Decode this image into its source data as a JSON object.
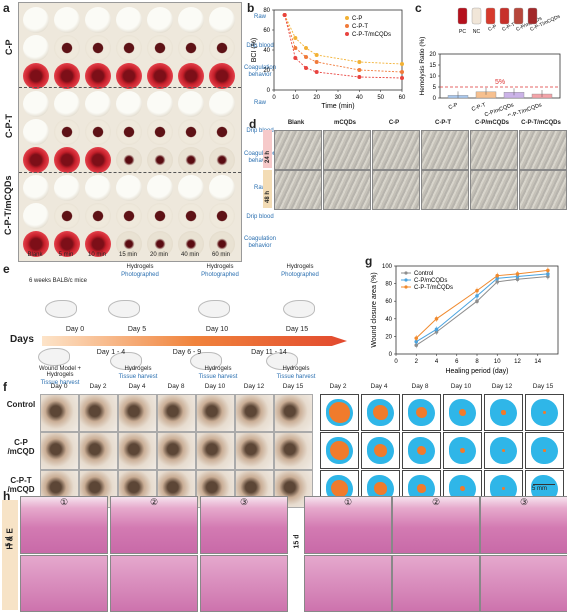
{
  "panel_a": {
    "label": "a",
    "groups": [
      "C-P",
      "C-P-T",
      "C-P-T/mCQDs"
    ],
    "row_labels": [
      "Raw",
      "Drip blood",
      "Coagulation behavior"
    ],
    "columns": [
      "Blank",
      "5 min",
      "10 min",
      "15 min",
      "20 min",
      "40 min",
      "60 min"
    ]
  },
  "panel_b": {
    "label": "b",
    "chart_data": {
      "type": "line",
      "ylabel": "BCI (%)",
      "xlabel": "Time (min)",
      "xlim": [
        0,
        60
      ],
      "ylim": [
        0,
        80
      ],
      "xticks": [
        "0",
        "10",
        "20",
        "30",
        "40",
        "50",
        "60"
      ],
      "yticks": [
        "0",
        "20",
        "40",
        "60",
        "80"
      ],
      "legend": "top-right",
      "x": [
        5,
        10,
        15,
        20,
        40,
        60
      ],
      "series": [
        {
          "name": "C-P",
          "color": "#f2b134",
          "values": [
            75,
            52,
            42,
            35,
            28,
            26
          ]
        },
        {
          "name": "C-P-T",
          "color": "#f07a3a",
          "values": [
            75,
            42,
            33,
            28,
            20,
            18
          ]
        },
        {
          "name": "C-P-T/mCQDs",
          "color": "#e8433f",
          "values": [
            75,
            32,
            22,
            18,
            13,
            12
          ]
        }
      ]
    }
  },
  "panel_c": {
    "label": "c",
    "chart_data": {
      "type": "bar",
      "ylabel": "Hemolysis Ratio (%)",
      "ylim": [
        0,
        20
      ],
      "yticks": [
        "0",
        "5",
        "10",
        "15",
        "20"
      ],
      "threshold_label": "5%",
      "categories": [
        "C-P",
        "C-P-T",
        "C-P/mCQDs",
        "C-P-T/mCQDs"
      ],
      "values": [
        1.2,
        2.8,
        2.6,
        1.8
      ],
      "colors": [
        "#a9c8ee",
        "#f6c08f",
        "#cbb3e8",
        "#f4a3a8"
      ],
      "tube_labels": [
        "PC",
        "NC",
        "C-P",
        "C-P-T",
        "C-P/mCQDs",
        "C-P-T/mCQDs"
      ]
    }
  },
  "panel_d": {
    "label": "d",
    "columns": [
      "Blank",
      "mCQDs",
      "C-P",
      "C-P-T",
      "C-P/mCQDs",
      "C-P-T/mCQDs"
    ],
    "rows": [
      "24 h",
      "48 h"
    ]
  },
  "panel_e": {
    "label": "e",
    "axis_label": "Days",
    "start_text": "6 weeks BALB/c mice",
    "days_top": [
      "Day 0",
      "Day 5",
      "Day 10",
      "Day 15"
    ],
    "days_bottom": [
      "Day 1 - 4",
      "Day 6 - 9",
      "Day 11 - 14"
    ],
    "top_events": [
      {
        "title": "Hydrogels",
        "sub": "Photographed"
      },
      {
        "title": "Hydrogels",
        "sub": "Photographed"
      },
      {
        "title": "Hydrogels",
        "sub": "Photographed"
      }
    ],
    "bottom_events": [
      {
        "title": "Wound Model + Hydrogels",
        "sub": "Tissue harvest"
      },
      {
        "title": "Hydrogels",
        "sub": "Tissue harvest"
      },
      {
        "title": "Hydrogels",
        "sub": "Tissue harvest"
      },
      {
        "title": "Hydrogels",
        "sub": "Tissue harvest"
      }
    ]
  },
  "panel_g": {
    "label": "g",
    "chart_data": {
      "type": "line",
      "ylabel": "Wound closure area (%)",
      "xlabel": "Healing period (day)",
      "xlim": [
        0,
        16
      ],
      "ylim": [
        0,
        100
      ],
      "xticks": [
        "0",
        "2",
        "4",
        "6",
        "8",
        "10",
        "12",
        "14"
      ],
      "yticks": [
        "0",
        "20",
        "40",
        "60",
        "80",
        "100"
      ],
      "legend": "top-left",
      "x": [
        2,
        4,
        8,
        10,
        12,
        15
      ],
      "series": [
        {
          "name": "Control",
          "color": "#8e8e8e",
          "values": [
            10,
            25,
            60,
            82,
            85,
            88
          ]
        },
        {
          "name": "C-P/mCQDs",
          "color": "#4aa3df",
          "values": [
            14,
            28,
            66,
            86,
            88,
            91
          ]
        },
        {
          "name": "C-P-T/mCQDs",
          "color": "#f08a2e",
          "values": [
            18,
            40,
            72,
            89,
            91,
            95
          ]
        }
      ]
    }
  },
  "panel_f": {
    "label": "f",
    "days_left": [
      "Day 0",
      "Day 2",
      "Day 4",
      "Day 8",
      "Day 10",
      "Day 12",
      "Day 15"
    ],
    "days_right": [
      "Day 2",
      "Day 4",
      "Day 8",
      "Day 10",
      "Day 12",
      "Day 15"
    ],
    "rows": [
      "Control",
      "C-P /mCQD",
      "C-P-T /mCQD"
    ],
    "scale": "5 mm",
    "wound_sizes": [
      [
        0.75,
        0.55,
        0.4,
        0.25,
        0.15,
        0.1
      ],
      [
        0.7,
        0.5,
        0.35,
        0.2,
        0.12,
        0.08
      ],
      [
        0.65,
        0.45,
        0.3,
        0.18,
        0.1,
        0.05
      ]
    ]
  },
  "panel_h": {
    "label": "h",
    "stain": "H & E",
    "times": [
      "5 d",
      "15 d"
    ],
    "circles": [
      "①",
      "②",
      "③",
      "①",
      "②",
      "③"
    ]
  }
}
